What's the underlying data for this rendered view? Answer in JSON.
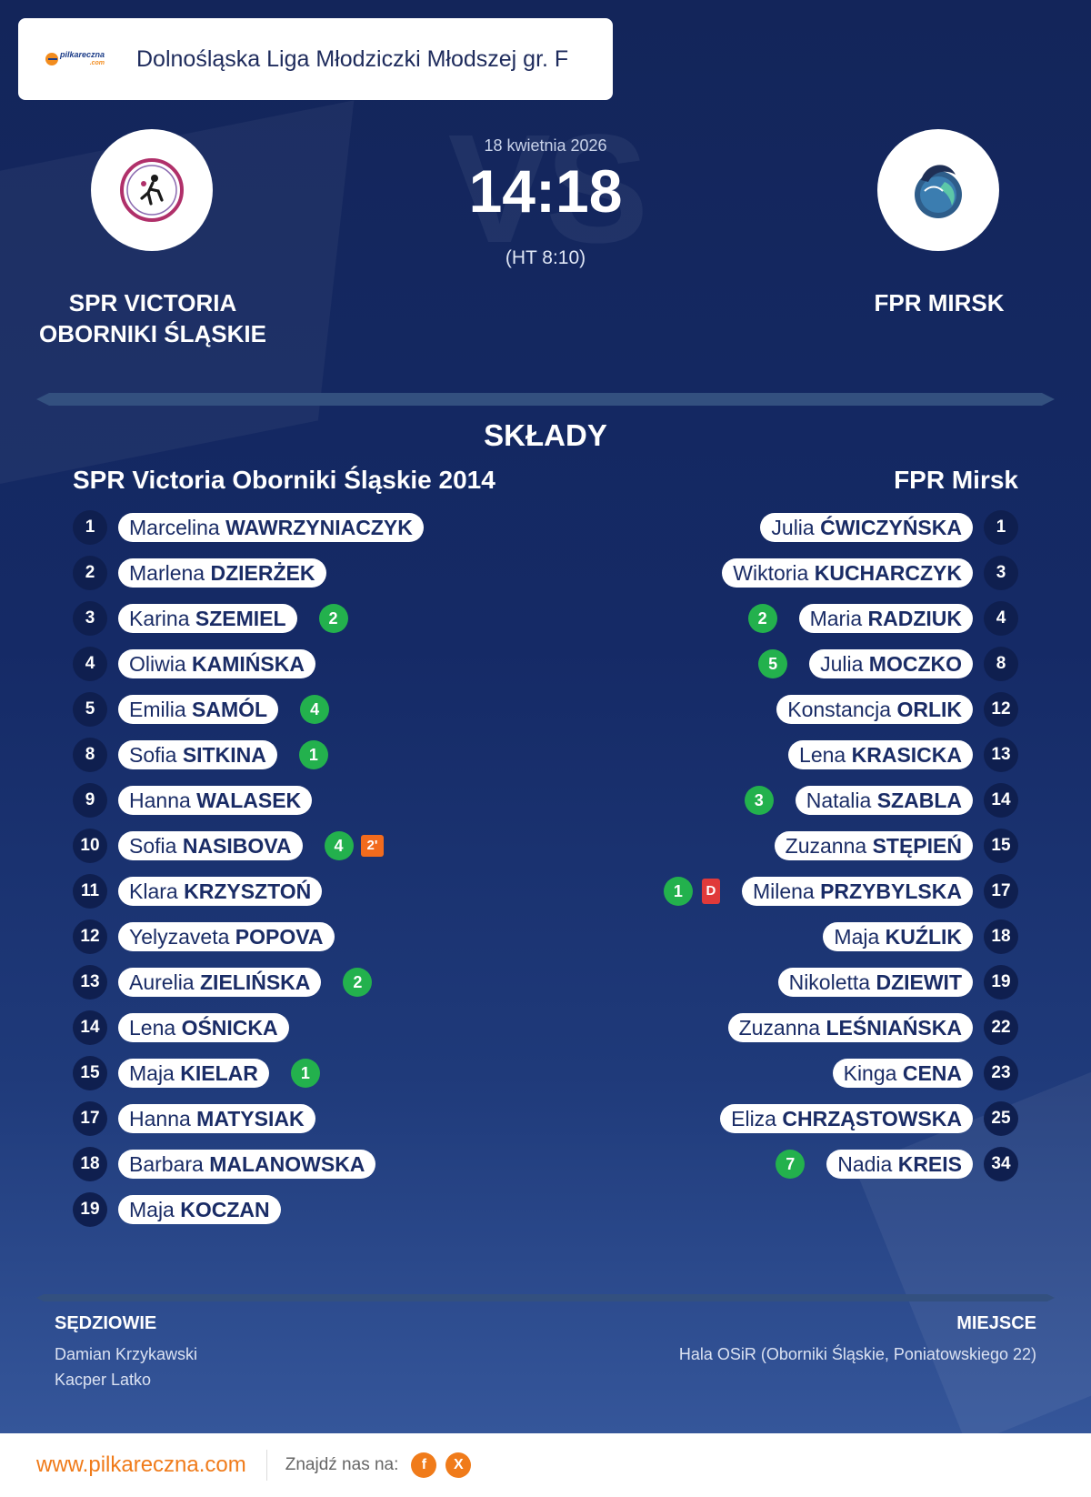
{
  "league": {
    "name": "Dolnośląska Liga Młodziczki Młodszej gr. F",
    "logo_text": "pilkareczna",
    "logo_sub": ".com"
  },
  "match": {
    "date": "18 kwietnia 2026",
    "score": "14:18",
    "halftime": "(HT 8:10)",
    "vs_text": "VS"
  },
  "home": {
    "name_line1": "SPR VICTORIA",
    "name_line2": "OBORNIKI ŚLĄSKIE",
    "roster_title": "SPR Victoria Oborniki Śląskie 2014"
  },
  "away": {
    "name_line1": "FPR MIRSK",
    "roster_title": "FPR Mirsk"
  },
  "section_title": "SKŁADY",
  "home_players": [
    {
      "number": "1",
      "first": "Marcelina",
      "last": "WAWRZYNIACZYK",
      "goals": "",
      "penalty": ""
    },
    {
      "number": "2",
      "first": "Marlena",
      "last": "DZIERŻEK",
      "goals": "",
      "penalty": ""
    },
    {
      "number": "3",
      "first": "Karina",
      "last": "SZEMIEL",
      "goals": "2",
      "penalty": ""
    },
    {
      "number": "4",
      "first": "Oliwia",
      "last": "KAMIŃSKA",
      "goals": "",
      "penalty": ""
    },
    {
      "number": "5",
      "first": "Emilia",
      "last": "SAMÓL",
      "goals": "4",
      "penalty": ""
    },
    {
      "number": "8",
      "first": "Sofia",
      "last": "SITKINA",
      "goals": "1",
      "penalty": ""
    },
    {
      "number": "9",
      "first": "Hanna",
      "last": "WALASEK",
      "goals": "",
      "penalty": ""
    },
    {
      "number": "10",
      "first": "Sofia",
      "last": "NASIBOVA",
      "goals": "4",
      "penalty": "2'"
    },
    {
      "number": "11",
      "first": "Klara",
      "last": "KRZYSZTOŃ",
      "goals": "",
      "penalty": ""
    },
    {
      "number": "12",
      "first": "Yelyzaveta",
      "last": "POPOVA",
      "goals": "",
      "penalty": ""
    },
    {
      "number": "13",
      "first": "Aurelia",
      "last": "ZIELIŃSKA",
      "goals": "2",
      "penalty": ""
    },
    {
      "number": "14",
      "first": "Lena",
      "last": "OŚNICKA",
      "goals": "",
      "penalty": ""
    },
    {
      "number": "15",
      "first": "Maja",
      "last": "KIELAR",
      "goals": "1",
      "penalty": ""
    },
    {
      "number": "17",
      "first": "Hanna",
      "last": "MATYSIAK",
      "goals": "",
      "penalty": ""
    },
    {
      "number": "18",
      "first": "Barbara",
      "last": "MALANOWSKA",
      "goals": "",
      "penalty": ""
    },
    {
      "number": "19",
      "first": "Maja",
      "last": "KOCZAN",
      "goals": "",
      "penalty": ""
    }
  ],
  "away_players": [
    {
      "number": "1",
      "first": "Julia",
      "last": "ĆWICZYŃSKA",
      "goals": "",
      "card": ""
    },
    {
      "number": "3",
      "first": "Wiktoria",
      "last": "KUCHARCZYK",
      "goals": "",
      "card": ""
    },
    {
      "number": "4",
      "first": "Maria",
      "last": "RADZIUK",
      "goals": "2",
      "card": ""
    },
    {
      "number": "8",
      "first": "Julia",
      "last": "MOCZKO",
      "goals": "5",
      "card": ""
    },
    {
      "number": "12",
      "first": "Konstancja",
      "last": "ORLIK",
      "goals": "",
      "card": ""
    },
    {
      "number": "13",
      "first": "Lena",
      "last": "KRASICKA",
      "goals": "",
      "card": ""
    },
    {
      "number": "14",
      "first": "Natalia",
      "last": "SZABLA",
      "goals": "3",
      "card": ""
    },
    {
      "number": "15",
      "first": "Zuzanna",
      "last": "STĘPIEŃ",
      "goals": "",
      "card": ""
    },
    {
      "number": "17",
      "first": "Milena",
      "last": "PRZYBYLSKA",
      "goals": "1",
      "card": "D"
    },
    {
      "number": "18",
      "first": "Maja",
      "last": "KUŹLIK",
      "goals": "",
      "card": ""
    },
    {
      "number": "19",
      "first": "Nikoletta",
      "last": "DZIEWIT",
      "goals": "",
      "card": ""
    },
    {
      "number": "22",
      "first": "Zuzanna",
      "last": "LEŚNIAŃSKA",
      "goals": "",
      "card": ""
    },
    {
      "number": "23",
      "first": "Kinga",
      "last": "CENA",
      "goals": "",
      "card": ""
    },
    {
      "number": "25",
      "first": "Eliza",
      "last": "CHRZĄSTOWSKA",
      "goals": "",
      "card": ""
    },
    {
      "number": "34",
      "first": "Nadia",
      "last": "KREIS",
      "goals": "7",
      "card": ""
    }
  ],
  "referees": {
    "title": "SĘDZIOWIE",
    "names": [
      "Damian Krzykawski",
      "Kacper Latko"
    ]
  },
  "venue": {
    "title": "MIEJSCE",
    "text": "Hala OSiR (Oborniki Śląskie, Poniatowskiego 22)"
  },
  "footer": {
    "site": "www.pilkareczna.com",
    "find_us": "Znajdź nas na:",
    "social": [
      {
        "icon": "facebook-icon",
        "glyph": "f"
      },
      {
        "icon": "x-icon",
        "glyph": "X"
      }
    ]
  },
  "colors": {
    "background": "#152a66",
    "accent": "#f07b1a",
    "goal": "#23b14d",
    "suspension": "#f26b1d",
    "disqualification": "#e03a3a"
  }
}
